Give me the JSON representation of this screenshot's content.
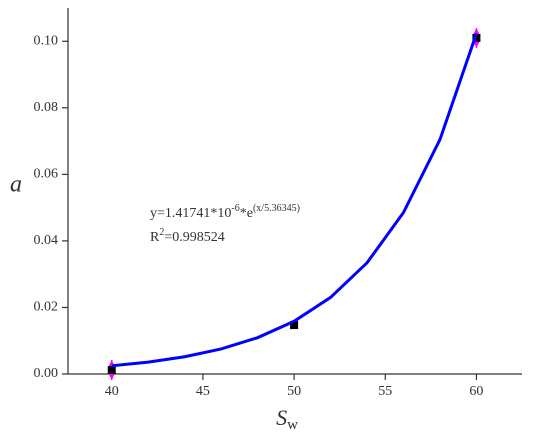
{
  "chart_data": {
    "type": "scatter",
    "x_label": {
      "main": "S",
      "sub": "w"
    },
    "y_label": "a",
    "xlim": [
      37.6,
      62.5
    ],
    "ylim": [
      0,
      0.11
    ],
    "xticks": [
      40,
      45,
      50,
      55,
      60
    ],
    "yticks": [
      {
        "value": 0,
        "label": "0.00"
      },
      {
        "value": 0.02,
        "label": "0.02"
      },
      {
        "value": 0.04,
        "label": "0.04"
      },
      {
        "value": 0.06,
        "label": "0.06"
      },
      {
        "value": 0.08,
        "label": "0.08"
      },
      {
        "value": 0.1,
        "label": "0.10"
      }
    ],
    "series": [
      {
        "color": "#000000",
        "x": [
          40,
          50,
          60
        ],
        "values": [
          0.0012,
          0.0147,
          0.101
        ],
        "errors": [
          0.003,
          null,
          0.003
        ],
        "error_color": "#ff00ff"
      },
      {
        "color": "#0000ff",
        "kind": "line",
        "x": [
          40,
          42,
          44,
          46,
          48,
          50,
          52,
          54,
          56,
          58,
          60
        ],
        "values": [
          0.00246,
          0.00357,
          0.00518,
          0.00752,
          0.01092,
          0.01585,
          0.02302,
          0.03342,
          0.04853,
          0.07046,
          0.10231
        ]
      }
    ],
    "annotation": {
      "eq_a": "y=1.41741*10",
      "eq_b": "-6",
      "eq_c": "*e",
      "eq_d": "(x/5.36345)",
      "r_a": "R",
      "r_b": "2",
      "r_c": "=0.998524"
    }
  }
}
